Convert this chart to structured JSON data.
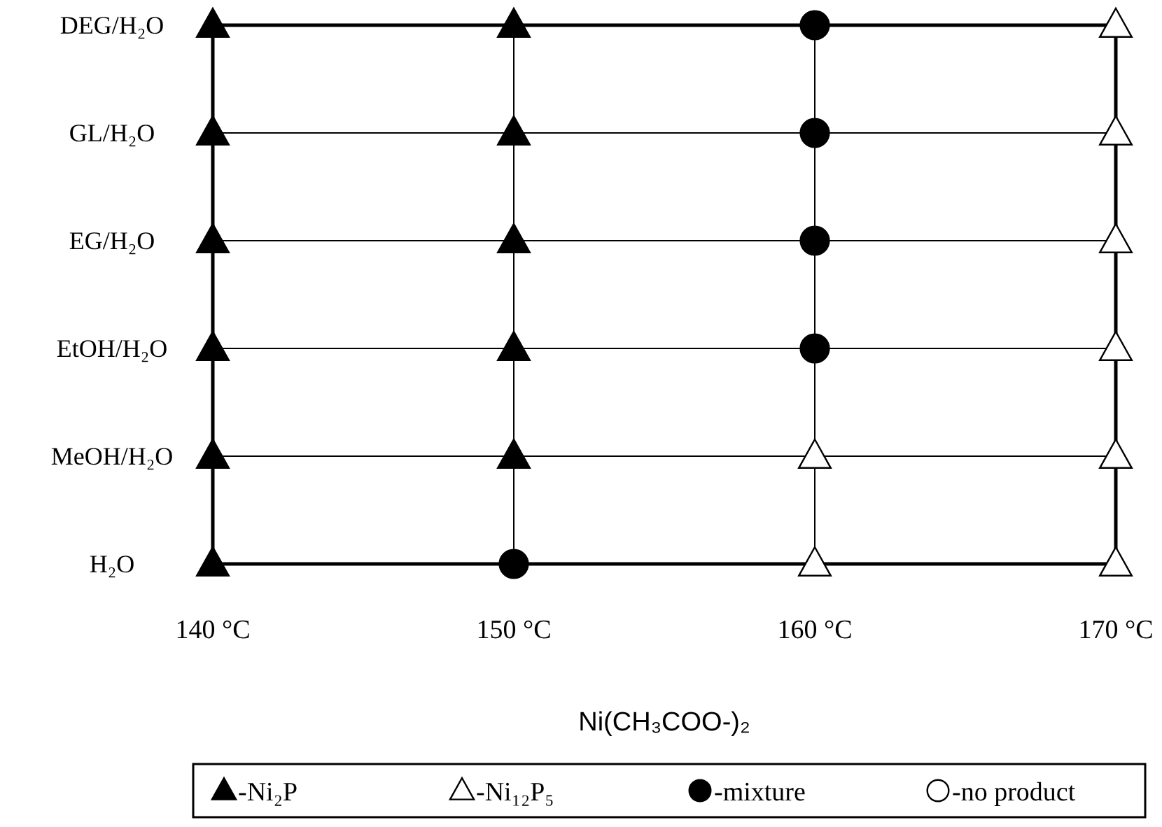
{
  "chart_data": {
    "type": "scatter",
    "orientation": "horizontal",
    "xlabel": "Ni(CH₃COO-)₂",
    "categories": [
      "DEG/H₂O",
      "GL/H₂O",
      "EG/H₂O",
      "EtOH/H₂O",
      "MeOH/H₂O",
      "H₂O"
    ],
    "xlim": [
      140,
      170
    ],
    "xticks": [
      {
        "value": 140,
        "label": "140 °C"
      },
      {
        "value": 150,
        "label": "150 °C"
      },
      {
        "value": 160,
        "label": "160 °C"
      },
      {
        "value": 170,
        "label": "170 °C"
      }
    ],
    "grid": true,
    "legend": "bottom",
    "series": [
      {
        "name": "-Ni₂P",
        "color": "#000000",
        "marker": "triangle",
        "values": [
          140,
          140,
          140,
          140,
          140,
          140
        ]
      },
      {
        "color": "#000000",
        "marker": "triangle",
        "values": [
          150,
          150,
          150,
          150,
          150,
          null
        ]
      },
      {
        "name": "-Ni₁₂P₅",
        "color": "#ffffff",
        "marker": "triangle",
        "values": [
          170,
          170,
          170,
          170,
          170,
          170
        ]
      },
      {
        "color": "#ffffff",
        "marker": "triangle",
        "values": [
          null,
          null,
          null,
          null,
          160,
          160
        ]
      },
      {
        "name": "-mixture",
        "color": "#000000",
        "marker": "circle",
        "values": [
          160,
          160,
          160,
          160,
          null,
          150
        ]
      },
      {
        "name": "-no product",
        "color": "#ffffff",
        "marker": "circle",
        "values": [
          null,
          null,
          null,
          null,
          null,
          null
        ]
      }
    ]
  }
}
